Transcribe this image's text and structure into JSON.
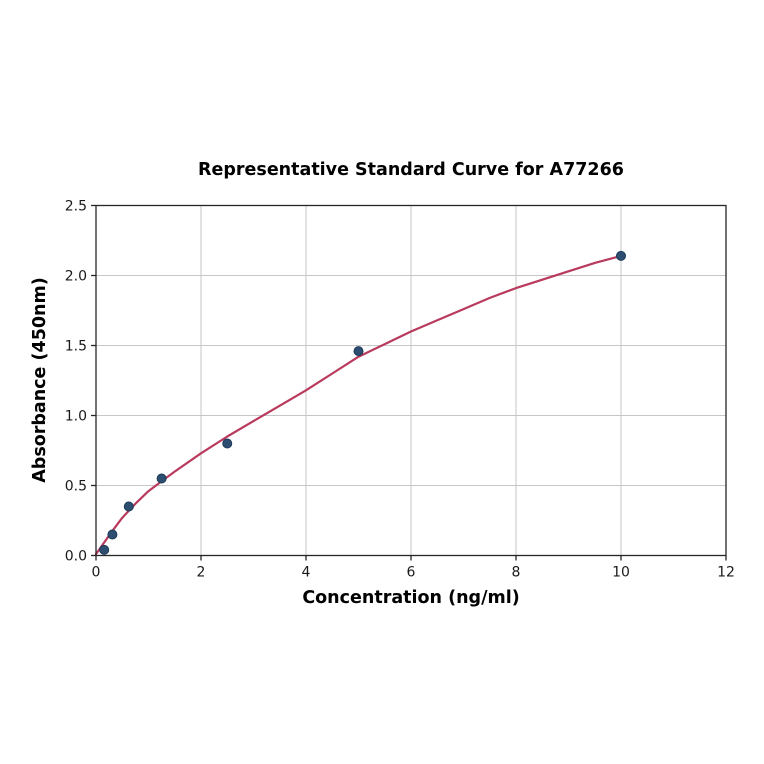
{
  "chart_data": {
    "type": "scatter",
    "title": "Representative Standard Curve for A77266",
    "xlabel": "Concentration (ng/ml)",
    "ylabel": "Absorbance (450nm)",
    "xlim": [
      0,
      12
    ],
    "ylim": [
      0,
      2.5
    ],
    "xticks": [
      0,
      2,
      4,
      6,
      8,
      10,
      12
    ],
    "xtick_labels": [
      "0",
      "2",
      "4",
      "6",
      "8",
      "10",
      "12"
    ],
    "yticks": [
      0,
      0.5,
      1.0,
      1.5,
      2.0,
      2.5
    ],
    "ytick_labels": [
      "0.0",
      "0.5",
      "1.0",
      "1.5",
      "2.0",
      "2.5"
    ],
    "grid": true,
    "legend": "none",
    "points": [
      {
        "x": 0.156,
        "y": 0.04
      },
      {
        "x": 0.3125,
        "y": 0.15
      },
      {
        "x": 0.625,
        "y": 0.35
      },
      {
        "x": 1.25,
        "y": 0.55
      },
      {
        "x": 2.5,
        "y": 0.8
      },
      {
        "x": 5,
        "y": 1.46
      },
      {
        "x": 10,
        "y": 2.14
      }
    ],
    "fit_curve": {
      "x": [
        0,
        0.15,
        0.3,
        0.5,
        0.75,
        1.0,
        1.25,
        1.5,
        2.0,
        2.5,
        3.0,
        3.5,
        4.0,
        4.5,
        5.0,
        5.5,
        6.0,
        6.5,
        7.0,
        7.5,
        8.0,
        8.5,
        9.0,
        9.5,
        10.0
      ],
      "y": [
        0.01,
        0.09,
        0.17,
        0.27,
        0.37,
        0.46,
        0.53,
        0.6,
        0.73,
        0.85,
        0.96,
        1.07,
        1.18,
        1.3,
        1.42,
        1.51,
        1.6,
        1.68,
        1.76,
        1.84,
        1.91,
        1.97,
        2.03,
        2.09,
        2.14
      ]
    },
    "colors": {
      "marker_fill": "#2d4d71",
      "marker_edge": "#1d3a57",
      "curve": "#b93a5c",
      "grid": "#c6c6c6",
      "spine": "#262626",
      "tick": "#262626",
      "background": "#ffffff"
    }
  }
}
